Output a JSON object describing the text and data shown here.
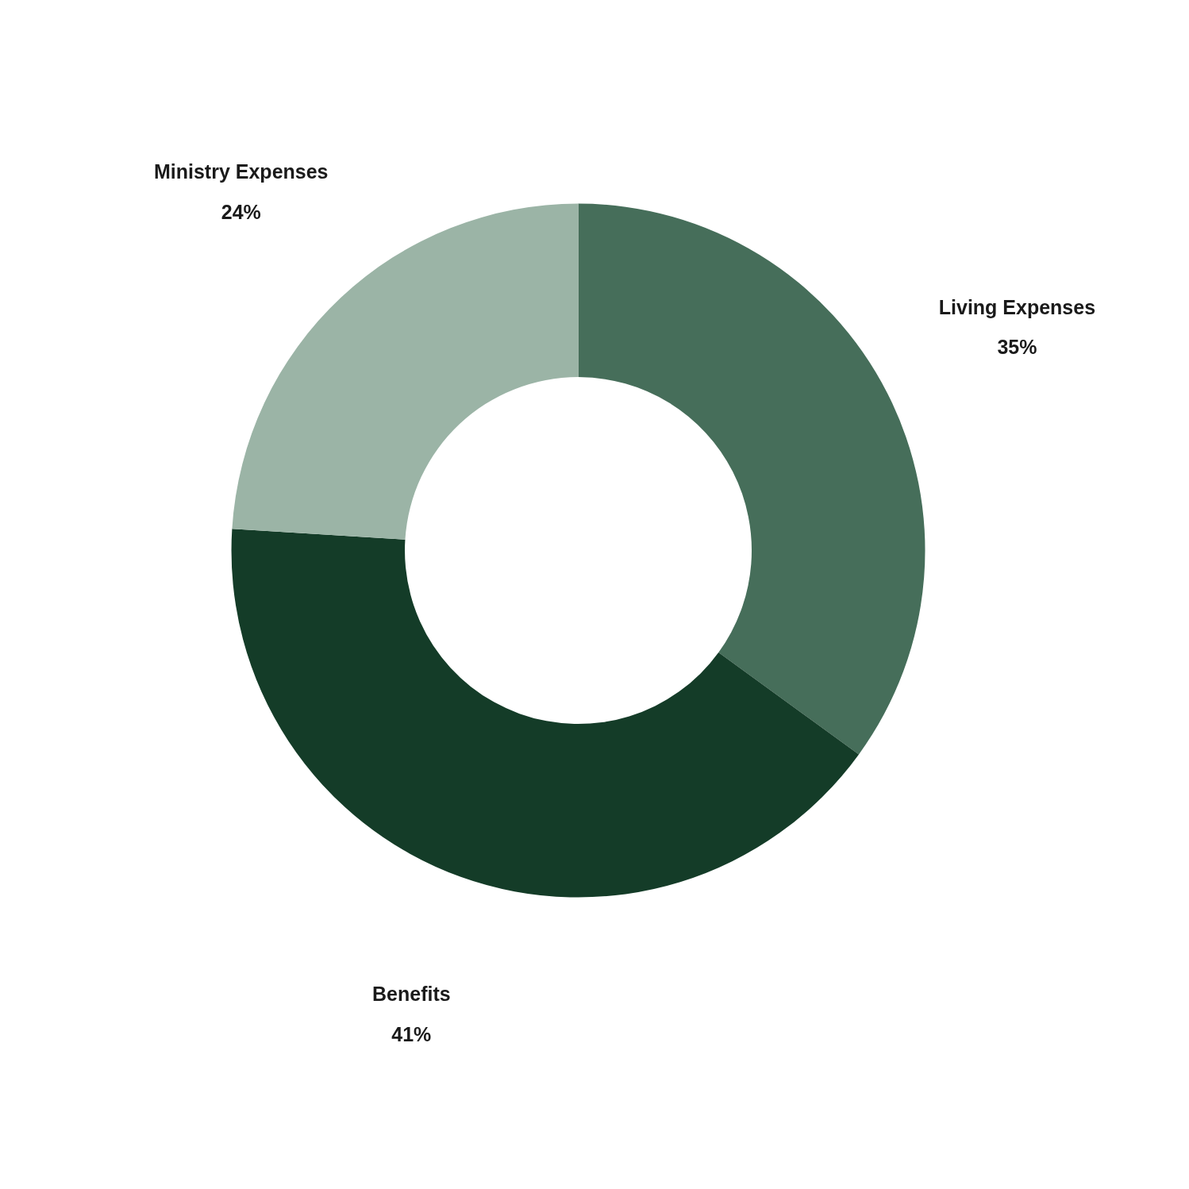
{
  "chart_data": {
    "type": "donut",
    "categories": [
      "Living Expenses",
      "Benefits",
      "Ministry Expenses"
    ],
    "values": [
      35,
      41,
      24
    ],
    "colors": [
      "#466e5a",
      "#143c28",
      "#9bb4a6"
    ],
    "value_labels": [
      "35%",
      "41%",
      "24%"
    ]
  }
}
